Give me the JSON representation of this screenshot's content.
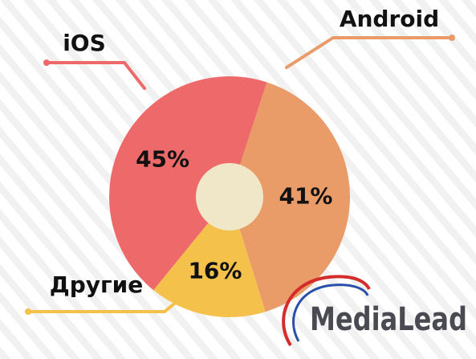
{
  "chart_data": {
    "type": "pie",
    "categories": [
      "iOS",
      "Android",
      "Другие"
    ],
    "values": [
      45,
      41,
      16
    ],
    "value_labels": [
      "45%",
      "41%",
      "16%"
    ],
    "colors": [
      "#ee6a6a",
      "#e99b68",
      "#f4c24a"
    ]
  },
  "logo": {
    "text": "MediaLead"
  }
}
